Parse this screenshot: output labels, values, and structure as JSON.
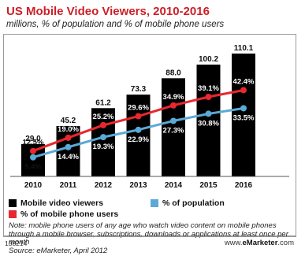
{
  "chart_data": {
    "type": "bar",
    "title": "US Mobile Video Viewers, 2010-2016",
    "subtitle": "millions, % of population and % of mobile phone users",
    "categories": [
      "2010",
      "2011",
      "2012",
      "2013",
      "2014",
      "2015",
      "2016"
    ],
    "series": [
      {
        "name": "Mobile video viewers",
        "kind": "bar",
        "values": [
          29.0,
          45.2,
          61.2,
          73.3,
          88.0,
          100.2,
          110.1
        ],
        "labels": [
          "29.0",
          "45.2",
          "61.2",
          "73.3",
          "88.0",
          "100.2",
          "110.1"
        ],
        "color": "#000000"
      },
      {
        "name": "% of mobile phone users",
        "kind": "line",
        "values": [
          12.5,
          19.0,
          25.2,
          29.6,
          34.9,
          39.1,
          42.4
        ],
        "labels": [
          "12.5%",
          "19.0%",
          "25.2%",
          "29.6%",
          "34.9%",
          "39.1%",
          "42.4%"
        ],
        "color": "#e8272f"
      },
      {
        "name": "% of population",
        "kind": "line",
        "values": [
          9.4,
          14.4,
          19.3,
          22.9,
          27.3,
          30.8,
          33.5
        ],
        "labels": [
          "9.4%",
          "14.4%",
          "19.3%",
          "22.9%",
          "27.3%",
          "30.8%",
          "33.5%"
        ],
        "color": "#5aa9d6"
      }
    ],
    "ylim_bars": [
      0,
      120
    ],
    "ylim_lines": [
      0,
      60
    ],
    "grid": false,
    "legend": "bottom"
  },
  "notes": {
    "note": "Note: mobile phone users of any age who watch video content on mobile phones through a mobile browser, subscriptions, downloads or applications at least once per month",
    "source": "Source: eMarketer, April 2012"
  },
  "footer": {
    "id": "138214",
    "site_prefix": "www.",
    "site_brand": "eMarketer",
    "site_suffix": ".com"
  },
  "colors": {
    "title": "#cc1f27",
    "bar": "#000000",
    "red_line": "#e8272f",
    "blue_line": "#5aa9d6"
  }
}
